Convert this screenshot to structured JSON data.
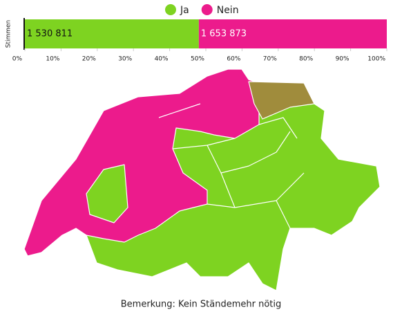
{
  "chart_data": {
    "type": "bar",
    "orientation": "horizontal",
    "percent_stacked": true,
    "y_label": "Stimmen",
    "series": [
      {
        "name": "Ja",
        "color": "#7ed321",
        "values": [
          1530811
        ],
        "value_labels": [
          "1 530 811"
        ]
      },
      {
        "name": "Nein",
        "color": "#ec1b8c",
        "values": [
          1653873
        ],
        "value_labels": [
          "1 653 873"
        ]
      }
    ],
    "xlim": [
      0,
      100
    ],
    "xticks": [
      {
        "value": 0,
        "label": "0%"
      },
      {
        "value": 10,
        "label": "10%"
      },
      {
        "value": 20,
        "label": "20%"
      },
      {
        "value": 30,
        "label": "30%"
      },
      {
        "value": 40,
        "label": "40%"
      },
      {
        "value": 50,
        "label": "50%"
      },
      {
        "value": 60,
        "label": "60%"
      },
      {
        "value": 70,
        "label": "70%"
      },
      {
        "value": 80,
        "label": "80%"
      },
      {
        "value": 90,
        "label": "90%"
      },
      {
        "value": 100,
        "label": "100%"
      }
    ],
    "legend": "top",
    "note": "Bemerkung: Kein Ständemehr nötig"
  }
}
